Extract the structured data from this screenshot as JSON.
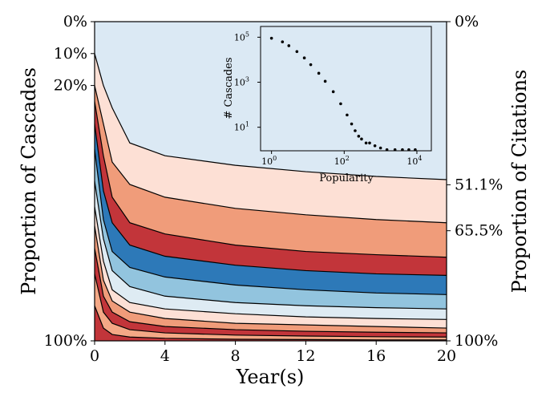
{
  "chart_data": [
    {
      "type": "area",
      "xlabel": "Year(s)",
      "ylabel_left": "Proportion of Cascades",
      "ylabel_right": "Proportion of Citations",
      "xlim": [
        0,
        20
      ],
      "x_ticks": [
        "0",
        "4",
        "8",
        "12",
        "16",
        "20"
      ],
      "y_ticks_left": [
        {
          "label": "0%",
          "value": 0
        },
        {
          "label": "10%",
          "value": 10
        },
        {
          "label": "20%",
          "value": 20
        },
        {
          "label": "100%",
          "value": 100
        }
      ],
      "y_ticks_right": [
        {
          "label": "0%",
          "value": 0
        },
        {
          "label": "51.1%",
          "value": 51.1
        },
        {
          "label": "65.5%",
          "value": 65.5
        },
        {
          "label": "100%",
          "value": 100
        }
      ],
      "x": [
        0,
        0.5,
        1,
        2,
        4,
        8,
        12,
        16,
        20
      ],
      "boundaries": [
        [
          10,
          20,
          27,
          38,
          42,
          45,
          47,
          48.5,
          49.5
        ],
        [
          20,
          32,
          44,
          51,
          55,
          58.5,
          60.5,
          62,
          63
        ],
        [
          25,
          42,
          55,
          63,
          66.5,
          70,
          72,
          73,
          73.8
        ],
        [
          32,
          53,
          63,
          70,
          73.5,
          76.3,
          78,
          79,
          79.5
        ],
        [
          40,
          62,
          72,
          77,
          80,
          82.5,
          84,
          85,
          85.5
        ],
        [
          50,
          68,
          78,
          83,
          86,
          88,
          89,
          89.6,
          90
        ],
        [
          58,
          75,
          84,
          88,
          90,
          91.5,
          92.5,
          93,
          93.3
        ],
        [
          64,
          81,
          87.5,
          91,
          93,
          94.5,
          95,
          95.5,
          96
        ],
        [
          71,
          86,
          91,
          94,
          95.5,
          96.5,
          97,
          97.3,
          97.5
        ],
        [
          79,
          91,
          94.5,
          96.5,
          97.5,
          98.2,
          98.5,
          98.7,
          98.8
        ],
        [
          89,
          96,
          98,
          98.8,
          99.2,
          99.5,
          99.6,
          99.7,
          99.7
        ]
      ],
      "band_colors": [
        "#dbe9f4",
        "#fde0d5",
        "#f09c7a",
        "#c2353a",
        "#2d79b8",
        "#92c4de",
        "#deebf3",
        "#fde0d5",
        "#f09c7a",
        "#c2353a",
        "#f4a886",
        "#c2353a"
      ]
    },
    {
      "type": "scatter",
      "xlabel": "Popularity",
      "ylabel": "# Cascades",
      "x_scale": "log",
      "y_scale": "log",
      "x_ticks": [
        {
          "base": "10",
          "exp": "0",
          "value": 1
        },
        {
          "base": "10",
          "exp": "2",
          "value": 100
        },
        {
          "base": "10",
          "exp": "4",
          "value": 10000
        }
      ],
      "y_ticks": [
        {
          "base": "10",
          "exp": "5",
          "value": 100000
        },
        {
          "base": "10",
          "exp": "3",
          "value": 1000
        },
        {
          "base": "10",
          "exp": "1",
          "value": 10
        }
      ],
      "xlim": [
        0.5,
        25000
      ],
      "ylim": [
        0.9,
        300000
      ],
      "points": [
        [
          1,
          90000
        ],
        [
          2,
          62000
        ],
        [
          3,
          42000
        ],
        [
          5,
          23000
        ],
        [
          8,
          12000
        ],
        [
          12,
          6000
        ],
        [
          20,
          2500
        ],
        [
          30,
          1100
        ],
        [
          50,
          380
        ],
        [
          80,
          110
        ],
        [
          120,
          35
        ],
        [
          160,
          14
        ],
        [
          200,
          7
        ],
        [
          250,
          4
        ],
        [
          300,
          3
        ],
        [
          400,
          2
        ],
        [
          500,
          2
        ],
        [
          700,
          1.5
        ],
        [
          1000,
          1.2
        ],
        [
          1500,
          1
        ],
        [
          2500,
          1
        ],
        [
          4000,
          1
        ],
        [
          6000,
          1
        ],
        [
          9000,
          1
        ]
      ]
    }
  ]
}
